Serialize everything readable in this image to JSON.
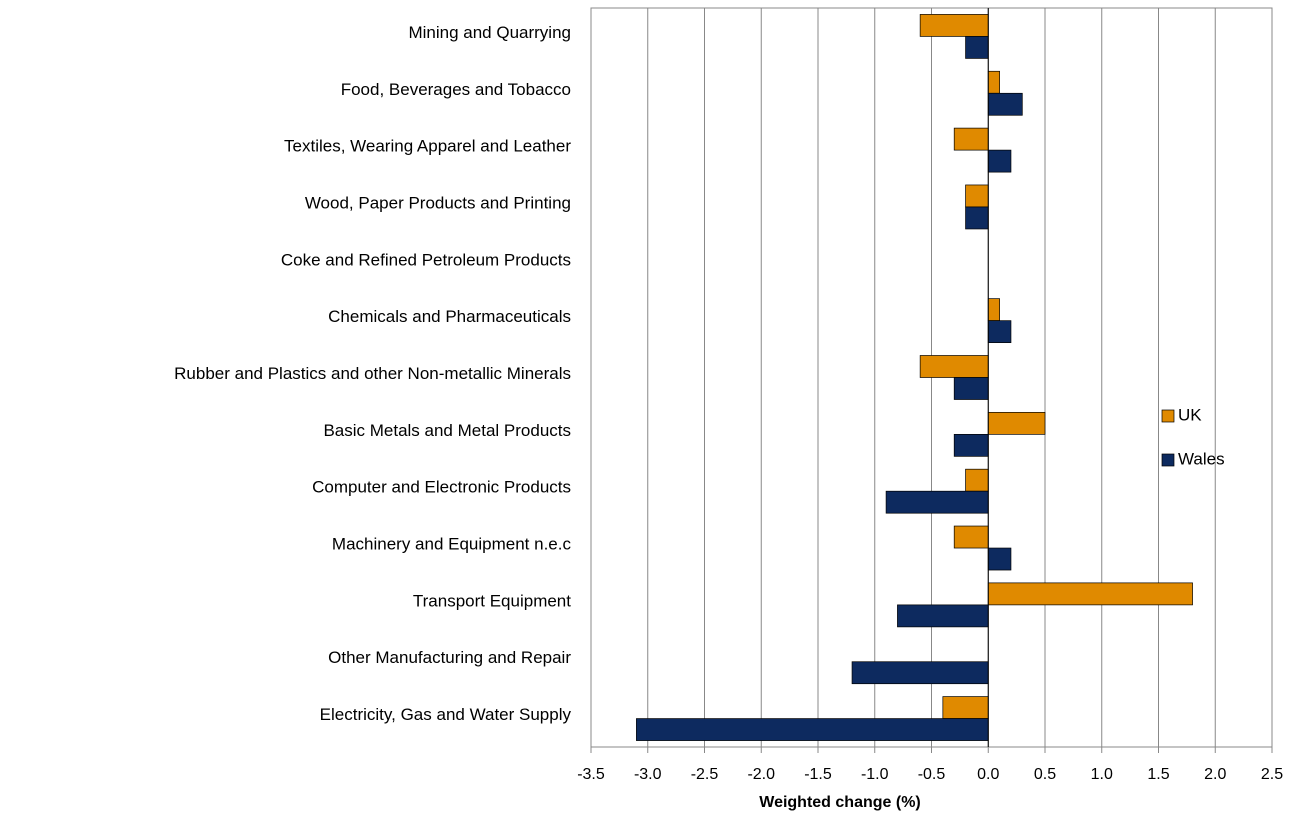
{
  "chart_data": {
    "type": "hbar",
    "x_label": "Weighted change (%)",
    "categories": [
      "Mining and Quarrying",
      "Food, Beverages and Tobacco",
      "Textiles, Wearing Apparel and Leather",
      "Wood, Paper Products and Printing",
      "Coke and Refined Petroleum Products",
      "Chemicals and Pharmaceuticals",
      "Rubber and Plastics and other Non-metallic Minerals",
      "Basic Metals and Metal Products",
      "Computer and Electronic Products",
      "Machinery and Equipment n.e.c",
      "Transport Equipment",
      "Other Manufacturing and Repair",
      "Electricity, Gas and Water Supply"
    ],
    "series": [
      {
        "name": "UK",
        "color": "#e08a00",
        "values": [
          -0.6,
          0.1,
          -0.3,
          -0.2,
          0,
          0.1,
          -0.6,
          0.5,
          -0.2,
          -0.3,
          1.8,
          0,
          -0.4
        ]
      },
      {
        "name": "Wales",
        "color": "#0d2a5f",
        "values": [
          -0.2,
          0.3,
          0.2,
          -0.2,
          0,
          0.2,
          -0.3,
          -0.3,
          -0.9,
          0.2,
          -0.8,
          -1.2,
          -3.1
        ]
      }
    ],
    "xlim": [
      -3.5,
      2.5
    ],
    "xticks": [
      -3.5,
      {
        "value": -3,
        "label": "-3.0"
      },
      -2.5,
      {
        "value": -2,
        "label": "-2.0"
      },
      -1.5,
      {
        "value": -1,
        "label": "-1.0"
      },
      -0.5,
      {
        "value": 0,
        "label": "0.0"
      },
      0.5,
      {
        "value": 1,
        "label": "1.0"
      },
      1.5,
      {
        "value": 2,
        "label": "2.0"
      },
      2.5
    ],
    "grid": true,
    "legend": "right"
  }
}
